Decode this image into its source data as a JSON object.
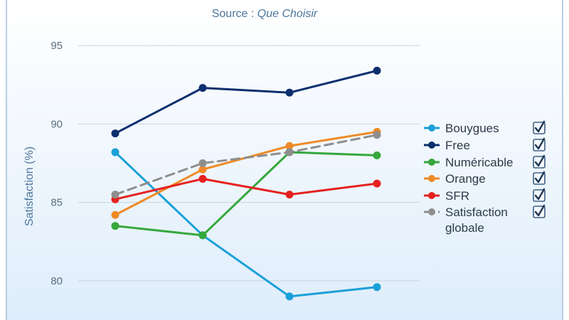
{
  "chart_data": {
    "type": "line",
    "title": "",
    "subtitle": {
      "prefix": "Source : ",
      "source": "Que Choisir"
    },
    "xlabel": "",
    "ylabel": "Satisfaction (%)",
    "ylim": [
      77.5,
      97
    ],
    "yticks": [
      95,
      90,
      85,
      80
    ],
    "grid": true,
    "legend": "right",
    "x": [
      1,
      2,
      3,
      4
    ],
    "series": [
      {
        "name": "Bouygues",
        "color": "#1aa0d8",
        "dashed": false,
        "values": [
          88.2,
          82.9,
          79.0,
          79.6
        ]
      },
      {
        "name": "Free",
        "color": "#0d2f6e",
        "dashed": false,
        "values": [
          89.4,
          92.3,
          92.0,
          93.4
        ]
      },
      {
        "name": "Numéricable",
        "color": "#35a73c",
        "dashed": false,
        "values": [
          83.5,
          82.9,
          88.2,
          88.0
        ]
      },
      {
        "name": "Orange",
        "color": "#ef8a26",
        "dashed": false,
        "values": [
          84.2,
          87.1,
          88.6,
          89.5
        ]
      },
      {
        "name": "SFR",
        "color": "#e5211f",
        "dashed": false,
        "values": [
          85.2,
          86.5,
          85.5,
          86.2
        ]
      },
      {
        "name": "Satisfaction globale",
        "color": "#8e8e8e",
        "dashed": true,
        "values": [
          85.5,
          87.5,
          88.2,
          89.3
        ]
      }
    ]
  },
  "legend_labels": [
    [
      "Bouygues"
    ],
    [
      "Free"
    ],
    [
      "Numéricable"
    ],
    [
      "Orange"
    ],
    [
      "SFR"
    ],
    [
      "Satisfaction",
      "globale"
    ]
  ]
}
